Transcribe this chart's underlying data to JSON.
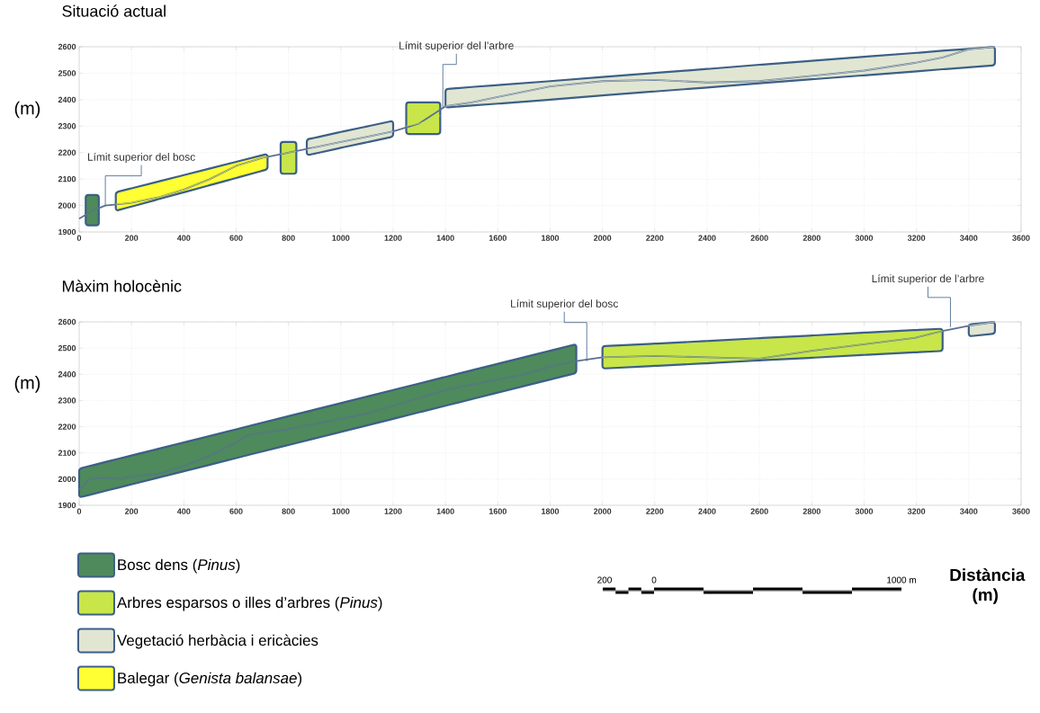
{
  "chart_data": [
    {
      "type": "line",
      "title": "Situació actual",
      "ylabel": "(m)",
      "xlim": [
        0,
        3600
      ],
      "ylim": [
        1900,
        2600
      ],
      "xticks": [
        0,
        200,
        400,
        600,
        800,
        1000,
        1200,
        1400,
        1600,
        1800,
        2000,
        2200,
        2400,
        2600,
        2800,
        3000,
        3200,
        3400,
        3600
      ],
      "yticks": [
        1900,
        2000,
        2100,
        2200,
        2300,
        2400,
        2500,
        2600
      ],
      "grid": true,
      "legend": "bottom left",
      "annotations": [
        {
          "text": "Límit superior del bosc",
          "x": 100,
          "y": 2000
        },
        {
          "text": "Límit superior del l’arbre",
          "x": 1390,
          "y": 2370
        }
      ],
      "series": [
        {
          "name": "Bosc dens (*Pinus*)",
          "color": "#4e8a5c",
          "x": [
            25,
            50,
            75
          ],
          "values": [
            1965,
            1980,
            1990
          ],
          "lower": [
            1925,
            1925,
            1925
          ],
          "upper": [
            2040,
            2040,
            2040
          ]
        },
        {
          "name": "Arbres esparsos o illes d’arbres (*Pinus*)",
          "color": "#c8e64a",
          "x": [
            770,
            830,
            null,
            1250,
            1300,
            1380
          ],
          "values": [
            2195,
            2205,
            null,
            2300,
            2310,
            2340
          ],
          "lower": [
            2120,
            2120,
            null,
            2270,
            2270,
            2270
          ],
          "upper": [
            2240,
            2240,
            null,
            2390,
            2390,
            2390
          ]
        },
        {
          "name": "Vegetació herbàcia i ericàcies",
          "color": "#e0e6d2",
          "x": [
            870,
            900,
            1000,
            1100,
            1200,
            null,
            1400,
            1500,
            1600,
            1800,
            2000,
            2200,
            2400,
            2600,
            2800,
            3000,
            3200,
            3300,
            3400,
            3500
          ],
          "values": [
            2210,
            2220,
            2240,
            2260,
            2280,
            null,
            2375,
            2390,
            2410,
            2450,
            2470,
            2475,
            2465,
            2470,
            2490,
            2510,
            2540,
            2560,
            2590,
            2600
          ],
          "lower": [
            2190,
            2196,
            2218,
            2239,
            2260,
            null,
            2370,
            2378,
            2385,
            2400,
            2416,
            2431,
            2446,
            2462,
            2477,
            2492,
            2507,
            2515,
            2522,
            2530
          ],
          "upper": [
            2250,
            2256,
            2278,
            2299,
            2320,
            null,
            2440,
            2448,
            2455,
            2470,
            2486,
            2501,
            2516,
            2532,
            2547,
            2562,
            2577,
            2585,
            2592,
            2600
          ]
        },
        {
          "name": "Balegar (*Genista balansae*)",
          "color": "#ffff33",
          "x": [
            140,
            200,
            300,
            400,
            500,
            600,
            700,
            720
          ],
          "values": [
            2005,
            2010,
            2030,
            2060,
            2100,
            2150,
            2180,
            2183
          ],
          "lower": [
            1980,
            1996,
            2023,
            2050,
            2077,
            2104,
            2131,
            2137
          ],
          "upper": [
            2050,
            2065,
            2090,
            2115,
            2140,
            2165,
            2190,
            2195
          ]
        },
        {
          "color": "#5a6f94",
          "x": [
            0,
            50,
            100,
            200,
            300,
            400,
            500,
            600,
            700,
            800,
            900,
            1000,
            1100,
            1200,
            1300,
            1400,
            1500,
            1600,
            1800,
            2000,
            2200,
            2400,
            2600,
            2800,
            3000,
            3200,
            3300,
            3400,
            3500
          ],
          "values": [
            1950,
            1980,
            2000,
            2010,
            2030,
            2060,
            2100,
            2150,
            2180,
            2200,
            2220,
            2240,
            2260,
            2280,
            2310,
            2375,
            2390,
            2410,
            2450,
            2470,
            2475,
            2465,
            2470,
            2490,
            2510,
            2540,
            2560,
            2590,
            2600
          ]
        }
      ]
    },
    {
      "type": "line",
      "title": "Màxim holocènic",
      "ylabel": "(m)",
      "xlabel": "Distància (m)",
      "xlim": [
        0,
        3600
      ],
      "ylim": [
        1900,
        2600
      ],
      "xticks": [
        0,
        200,
        400,
        600,
        800,
        1000,
        1200,
        1400,
        1600,
        1800,
        2000,
        2200,
        2400,
        2600,
        2800,
        3000,
        3200,
        3400,
        3600
      ],
      "yticks": [
        1900,
        2000,
        2100,
        2200,
        2300,
        2400,
        2500,
        2600
      ],
      "grid": true,
      "annotations": [
        {
          "text": "Límit superior del bosc",
          "x": 1940,
          "y": 2450
        },
        {
          "text": "Límit superior de l’arbre",
          "x": 3330,
          "y": 2580
        },
        "200",
        "0",
        "1000 m"
      ],
      "series": [
        {
          "color": "#4e8a5c",
          "x": [
            0,
            40,
            100,
            160,
            200,
            300,
            400,
            500,
            600,
            650,
            800,
            900,
            1000,
            1100,
            1200,
            1300,
            1400,
            1500,
            1600,
            1700,
            1800,
            1900
          ],
          "values": [
            1960,
            2000,
            2005,
            2000,
            2010,
            2020,
            2050,
            2090,
            2140,
            2170,
            2190,
            2210,
            2230,
            2250,
            2280,
            2310,
            2340,
            2360,
            2380,
            2400,
            2430,
            2450
          ],
          "lower": [
            1930,
            1940,
            1955,
            1970,
            1980,
            2005,
            2030,
            2055,
            2080,
            2093,
            2130,
            2155,
            2180,
            2205,
            2230,
            2255,
            2280,
            2305,
            2330,
            2355,
            2380,
            2405
          ],
          "upper": [
            2040,
            2050,
            2065,
            2080,
            2090,
            2115,
            2140,
            2165,
            2190,
            2203,
            2240,
            2265,
            2290,
            2315,
            2340,
            2365,
            2390,
            2415,
            2440,
            2465,
            2490,
            2515
          ]
        },
        {
          "color": "#c8e64a",
          "x": [
            2000,
            2200,
            2400,
            2600,
            2800,
            3000,
            3200,
            3300
          ],
          "values": [
            2465,
            2470,
            2465,
            2460,
            2490,
            2515,
            2540,
            2565
          ],
          "lower": [
            2422,
            2432,
            2442,
            2453,
            2463,
            2474,
            2484,
            2489
          ],
          "upper": [
            2507,
            2517,
            2527,
            2538,
            2548,
            2559,
            2569,
            2574
          ]
        },
        {
          "color": "#e0e6d2",
          "x": [
            3400,
            3500
          ],
          "values": [
            2585,
            2600
          ],
          "lower": [
            2545,
            2555
          ],
          "upper": [
            2590,
            2600
          ]
        },
        {
          "color": "#5a6f94",
          "x": [
            0,
            40,
            100,
            160,
            200,
            300,
            400,
            500,
            600,
            650,
            800,
            900,
            1000,
            1100,
            1200,
            1300,
            1400,
            1500,
            1600,
            1700,
            1800,
            1900,
            2000,
            2200,
            2400,
            2600,
            2800,
            3000,
            3200,
            3300,
            3400,
            3500
          ],
          "values": [
            1960,
            2000,
            2005,
            2000,
            2010,
            2020,
            2050,
            2090,
            2140,
            2170,
            2190,
            2210,
            2230,
            2250,
            2280,
            2310,
            2340,
            2360,
            2380,
            2400,
            2430,
            2450,
            2465,
            2470,
            2465,
            2460,
            2490,
            2515,
            2540,
            2565,
            2585,
            2600
          ]
        }
      ]
    }
  ]
}
